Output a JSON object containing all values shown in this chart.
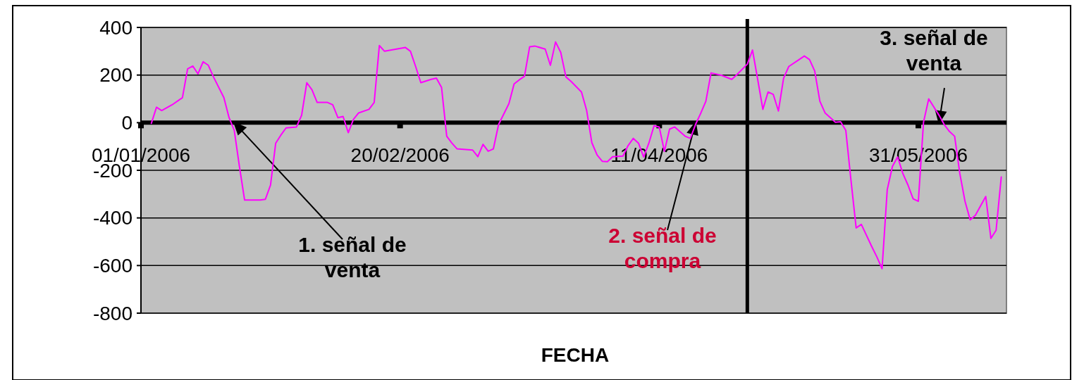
{
  "chart_data": {
    "type": "line",
    "xlabel": "FECHA",
    "x": [
      "2006-01-03",
      "2006-01-04",
      "2006-01-05",
      "2006-01-07",
      "2006-01-09",
      "2006-01-10",
      "2006-01-11",
      "2006-01-12",
      "2006-01-13",
      "2006-01-14",
      "2006-01-15",
      "2006-01-17",
      "2006-01-18",
      "2006-01-19",
      "2006-01-20",
      "2006-01-21",
      "2006-01-24",
      "2006-01-25",
      "2006-01-26",
      "2006-01-27",
      "2006-01-28",
      "2006-01-29",
      "2006-01-31",
      "2006-02-01",
      "2006-02-02",
      "2006-02-03",
      "2006-02-04",
      "2006-02-06",
      "2006-02-07",
      "2006-02-08",
      "2006-02-09",
      "2006-02-10",
      "2006-02-11",
      "2006-02-12",
      "2006-02-14",
      "2006-02-15",
      "2006-02-16",
      "2006-02-17",
      "2006-02-21",
      "2006-02-22",
      "2006-02-23",
      "2006-02-24",
      "2006-02-26",
      "2006-02-27",
      "2006-02-28",
      "2006-03-01",
      "2006-03-02",
      "2006-03-03",
      "2006-03-06",
      "2006-03-07",
      "2006-03-08",
      "2006-03-09",
      "2006-03-10",
      "2006-03-11",
      "2006-03-13",
      "2006-03-14",
      "2006-03-15",
      "2006-03-16",
      "2006-03-17",
      "2006-03-18",
      "2006-03-20",
      "2006-03-21",
      "2006-03-22",
      "2006-03-23",
      "2006-03-24",
      "2006-03-25",
      "2006-03-27",
      "2006-03-28",
      "2006-03-29",
      "2006-03-30",
      "2006-03-31",
      "2006-04-01",
      "2006-04-02",
      "2006-04-04",
      "2006-04-05",
      "2006-04-06",
      "2006-04-07",
      "2006-04-08",
      "2006-04-09",
      "2006-04-10",
      "2006-04-11",
      "2006-04-12",
      "2006-04-13",
      "2006-04-14",
      "2006-04-16",
      "2006-04-17",
      "2006-04-18",
      "2006-04-19",
      "2006-04-20",
      "2006-04-21",
      "2006-04-23",
      "2006-04-25",
      "2006-04-26",
      "2006-04-28",
      "2006-04-29",
      "2006-04-30",
      "2006-05-01",
      "2006-05-02",
      "2006-05-03",
      "2006-05-04",
      "2006-05-05",
      "2006-05-06",
      "2006-05-08",
      "2006-05-09",
      "2006-05-10",
      "2006-05-11",
      "2006-05-12",
      "2006-05-13",
      "2006-05-15",
      "2006-05-16",
      "2006-05-17",
      "2006-05-18",
      "2006-05-19",
      "2006-05-20",
      "2006-05-22",
      "2006-05-23",
      "2006-05-24",
      "2006-05-25",
      "2006-05-26",
      "2006-05-27",
      "2006-05-28",
      "2006-05-29",
      "2006-05-30",
      "2006-05-31",
      "2006-06-01",
      "2006-06-02",
      "2006-06-04",
      "2006-06-05",
      "2006-06-06",
      "2006-06-07",
      "2006-06-08",
      "2006-06-09",
      "2006-06-10",
      "2006-06-11",
      "2006-06-13",
      "2006-06-14",
      "2006-06-15",
      "2006-06-16"
    ],
    "series": [
      {
        "color": "#ff00ff",
        "values": [
          -3,
          65,
          51,
          75,
          105,
          226,
          238,
          205,
          256,
          241,
          192,
          105,
          21,
          -32,
          -184,
          -325,
          -325,
          -322,
          -262,
          -86,
          -52,
          -22,
          -18,
          31,
          168,
          138,
          85,
          85,
          75,
          21,
          26,
          -42,
          14,
          41,
          56,
          85,
          324,
          300,
          316,
          300,
          236,
          168,
          182,
          187,
          148,
          -57,
          -86,
          -110,
          -115,
          -143,
          -91,
          -120,
          -110,
          -8,
          80,
          163,
          180,
          195,
          319,
          322,
          309,
          241,
          339,
          295,
          192,
          173,
          129,
          51,
          -84,
          -135,
          -162,
          -164,
          -143,
          -140,
          -96,
          -66,
          -86,
          -144,
          -86,
          -13,
          -18,
          -120,
          -27,
          -18,
          -57,
          -66,
          -8,
          39,
          90,
          209,
          199,
          182,
          202,
          246,
          305,
          182,
          56,
          129,
          119,
          49,
          187,
          236,
          265,
          280,
          265,
          217,
          90,
          41,
          2,
          4,
          -32,
          -242,
          -442,
          -427,
          -520,
          -564,
          -613,
          -281,
          -184,
          -144,
          -213,
          -262,
          -320,
          -330,
          2,
          100,
          31,
          -8,
          -37,
          -57,
          -213,
          -330,
          -408,
          -389,
          -310,
          -486,
          -452,
          -228
        ]
      }
    ],
    "xlim": [
      "2006-01-01",
      "2006-06-17"
    ],
    "xticks": [
      {
        "value": "2006-01-01",
        "label": "01/01/2006"
      },
      {
        "value": "2006-02-20",
        "label": "20/02/2006"
      },
      {
        "value": "2006-04-11",
        "label": "11/04/2006"
      },
      {
        "value": "2006-05-31",
        "label": "31/05/2006"
      }
    ],
    "ylim": [
      -800,
      400
    ],
    "yticks": [
      -800,
      -600,
      -400,
      -200,
      0,
      200,
      400
    ],
    "grid": "y",
    "marker": "none",
    "line_style": "solid",
    "ref_lines": [
      {
        "axis": "x",
        "value": "2006-04-28",
        "color": "#000000"
      }
    ],
    "annotations": [
      {
        "text": "1. señal de venta",
        "x": "2006-01-19",
        "y": 0
      },
      {
        "text": "2. señal de compra",
        "x": "2006-04-18",
        "y": 0
      },
      {
        "text": "3. señal de venta",
        "x": "2006-06-04",
        "y": 0
      }
    ]
  }
}
